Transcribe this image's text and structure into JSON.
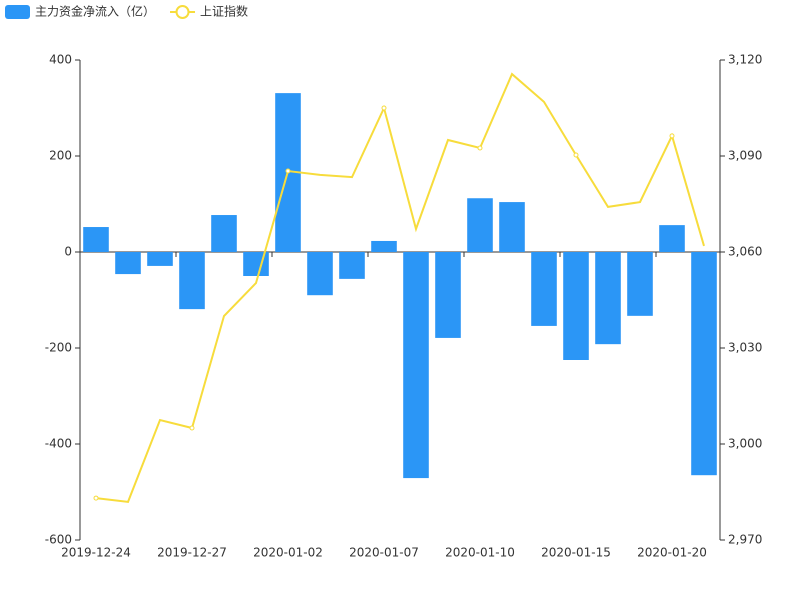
{
  "chart_data": {
    "type": "bar-line",
    "categories": [
      "2019-12-24",
      null,
      null,
      "2019-12-27",
      null,
      null,
      "2020-01-02",
      null,
      null,
      "2020-01-07",
      null,
      null,
      "2020-01-10",
      null,
      null,
      "2020-01-15",
      null,
      null,
      "2020-01-20",
      null
    ],
    "series": [
      {
        "name": "主力资金净流入（亿）",
        "type": "bar",
        "color": "#2b96f6",
        "values": [
          52,
          -46,
          -29,
          -119,
          77,
          -50,
          331,
          -90,
          -56,
          23,
          -471,
          -179,
          112,
          104,
          -154,
          -225,
          -192,
          -133,
          56,
          -465
        ]
      },
      {
        "name": "上证指数",
        "type": "line",
        "axis": "y2",
        "color": "#f7dc3c",
        "values": [
          2983.1,
          2981.9,
          3007.5,
          3005.0,
          3040.0,
          3050.3,
          3085.3,
          3084.1,
          3083.4,
          3105.0,
          3067.2,
          3095.0,
          3092.5,
          3115.6,
          3106.9,
          3090.3,
          3074.1,
          3075.6,
          3096.3,
          3061.9
        ]
      }
    ],
    "ylim": [
      -600,
      400
    ],
    "yticks": [
      -600,
      -400,
      -200,
      0,
      200,
      400
    ],
    "y2lim": [
      2970,
      3120
    ],
    "y2ticks": [
      {
        "value": 2970,
        "label": "2,970"
      },
      {
        "value": 3000,
        "label": "3,000"
      },
      {
        "value": 3030,
        "label": "3,030"
      },
      {
        "value": 3060,
        "label": "3,060"
      },
      {
        "value": 3090,
        "label": "3,090"
      },
      {
        "value": 3120,
        "label": "3,120"
      }
    ],
    "grid": false,
    "legend": "top-left"
  }
}
